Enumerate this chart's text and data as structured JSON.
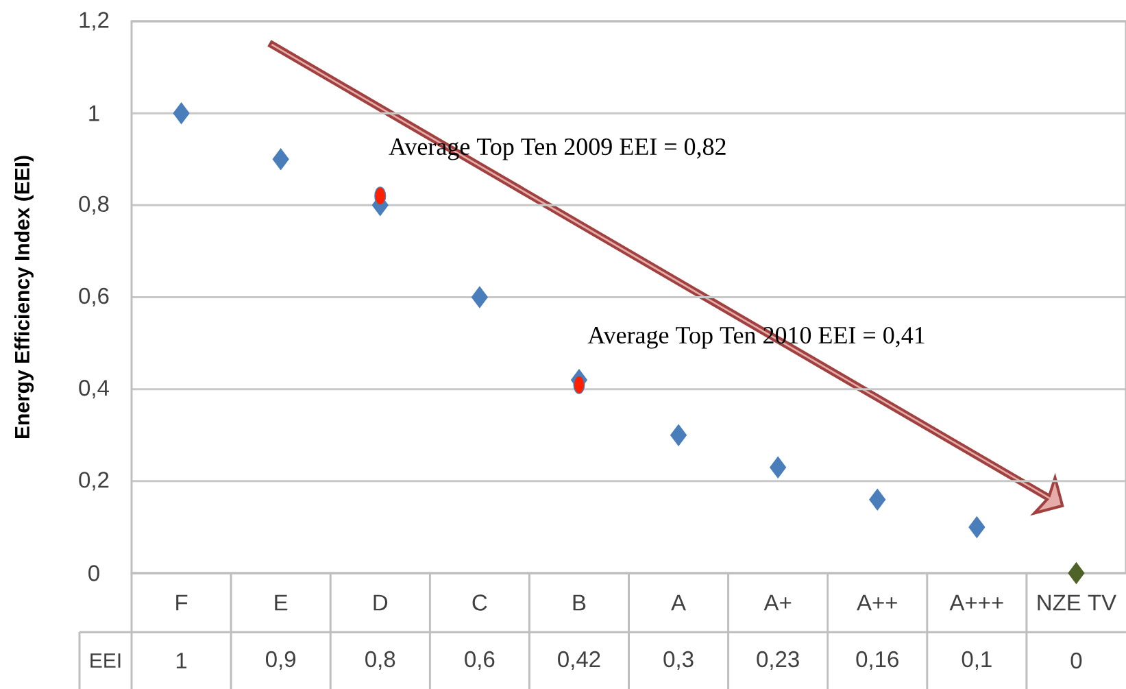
{
  "chart_data": {
    "type": "scatter",
    "ylabel": "Energy Efficiency Index (EEI)",
    "categories": [
      "F",
      "E",
      "D",
      "C",
      "B",
      "A",
      "A+",
      "A++",
      "A+++",
      "NZE TV"
    ],
    "ylim": [
      0,
      1.2
    ],
    "yticks": [
      0,
      {
        "value": 0.2,
        "label": "0,2"
      },
      {
        "value": 0.4,
        "label": "0,4"
      },
      {
        "value": 0.6,
        "label": "0,6"
      },
      {
        "value": 0.8,
        "label": "0,8"
      },
      1,
      {
        "value": 1.2,
        "label": "1,2"
      }
    ],
    "grid": "y",
    "marker": "diamond",
    "annotations": [
      {
        "text": "Average Top Ten 2009 EEI = 0,82",
        "x": "D",
        "y": 0.82
      },
      {
        "text": "Average Top Ten 2010 EEI = 0,41",
        "x": "B",
        "y": 0.41
      }
    ],
    "series": [
      {
        "name": "EEI",
        "colors": [
          "#4a7ebb",
          "#4a7ebb",
          "#4a7ebb",
          "#4a7ebb",
          "#4a7ebb",
          "#4a7ebb",
          "#4a7ebb",
          "#4a7ebb",
          "#4a7ebb",
          "#4f6228"
        ],
        "values": [
          1,
          0.9,
          0.8,
          0.6,
          0.42,
          0.3,
          0.23,
          0.16,
          0.1,
          0
        ],
        "value_labels": [
          "1",
          "0,9",
          "0,8",
          "0,6",
          "0,42",
          "0,3",
          "0,23",
          "0,16",
          "0,1",
          "0"
        ]
      },
      {
        "x": [
          "D",
          "B"
        ],
        "values": [
          0.82,
          0.41
        ],
        "color": "#ff2000",
        "marker": "circle"
      }
    ]
  }
}
